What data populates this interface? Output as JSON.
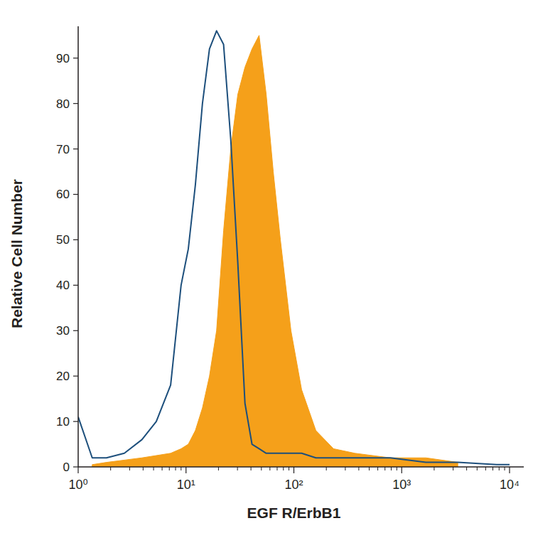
{
  "chart_data": {
    "type": "line",
    "x_label": "EGF R/ErbB1",
    "y_label": "Relative Cell Number",
    "log": "x",
    "x": [
      1,
      1.35,
      1.83,
      2.68,
      3.9,
      5.3,
      7.2,
      9,
      10.5,
      12.2,
      14.2,
      16.5,
      19.2,
      22.3,
      26,
      30.2,
      35.2,
      40.9,
      47.6,
      55.4,
      64.4,
      75,
      94,
      118,
      160,
      233,
      368,
      785,
      1675,
      3311,
      7590,
      10000
    ],
    "series": [
      {
        "type": "area",
        "color": "#f5a01a",
        "values": [
          null,
          0.5,
          1,
          1.5,
          2,
          2.5,
          3,
          4,
          5,
          8,
          13,
          20,
          30,
          52,
          70,
          82,
          88,
          92,
          95,
          82,
          65,
          50,
          30,
          17,
          8,
          4,
          3,
          2,
          2,
          1,
          null,
          null
        ]
      },
      {
        "type": "line",
        "color": "#1d4f7c",
        "values": [
          11,
          2,
          2,
          3,
          6,
          10,
          18,
          40,
          48,
          62,
          80,
          92,
          96,
          93,
          72,
          45,
          14,
          5,
          4,
          3,
          3,
          3,
          3,
          3,
          2,
          2,
          2,
          2,
          1,
          1,
          0.5,
          0.5
        ]
      }
    ],
    "xlim": [
      1,
      10000
    ],
    "xticks": [
      {
        "value": 1,
        "label": "10⁰"
      },
      {
        "value": 10,
        "label": "10¹"
      },
      {
        "value": 100,
        "label": "10²"
      },
      {
        "value": 1000,
        "label": "10³"
      },
      {
        "value": 10000,
        "label": "10⁴"
      }
    ],
    "ylim": [
      0,
      97
    ],
    "yticks": [
      0,
      10,
      20,
      30,
      40,
      50,
      60,
      70,
      80,
      90
    ]
  }
}
